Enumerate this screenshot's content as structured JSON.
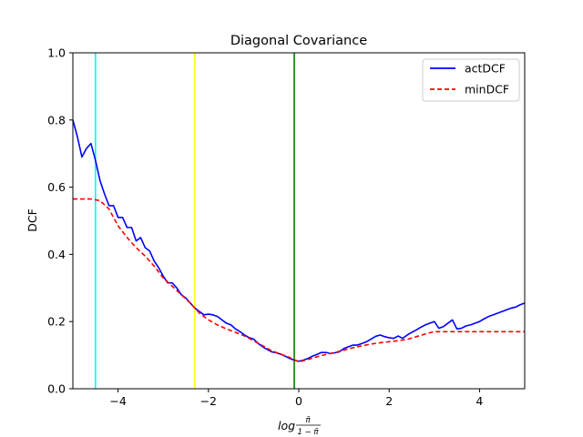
{
  "chart_data": {
    "type": "line",
    "title": "Diagonal Covariance",
    "xlabel_parts": {
      "log": "log",
      "numerator": "π̃",
      "denominator": "1 − π̃"
    },
    "ylabel": "DCF",
    "xlim": [
      -5,
      5
    ],
    "ylim": [
      0,
      1
    ],
    "xticks": [
      -4,
      -2,
      0,
      2,
      4
    ],
    "xtick_labels": [
      "−4",
      "−2",
      "0",
      "2",
      "4"
    ],
    "yticks": [
      0.0,
      0.2,
      0.4,
      0.6,
      0.8,
      1.0
    ],
    "ytick_labels": [
      "0.0",
      "0.2",
      "0.4",
      "0.6",
      "0.8",
      "1.0"
    ],
    "grid": false,
    "legend_position": "top-right",
    "vlines": [
      {
        "x": -4.5,
        "color": "#00ffff"
      },
      {
        "x": -2.3,
        "color": "#ffff00"
      },
      {
        "x": -0.1,
        "color": "#008000"
      }
    ],
    "series": [
      {
        "name": "actDCF",
        "color": "#0000ff",
        "style": "solid",
        "points": [
          [
            -5.0,
            0.8
          ],
          [
            -4.9,
            0.75
          ],
          [
            -4.8,
            0.69
          ],
          [
            -4.7,
            0.715
          ],
          [
            -4.6,
            0.73
          ],
          [
            -4.5,
            0.68
          ],
          [
            -4.4,
            0.62
          ],
          [
            -4.3,
            0.58
          ],
          [
            -4.2,
            0.545
          ],
          [
            -4.1,
            0.545
          ],
          [
            -4.0,
            0.51
          ],
          [
            -3.9,
            0.51
          ],
          [
            -3.8,
            0.48
          ],
          [
            -3.7,
            0.48
          ],
          [
            -3.6,
            0.44
          ],
          [
            -3.5,
            0.45
          ],
          [
            -3.4,
            0.42
          ],
          [
            -3.3,
            0.41
          ],
          [
            -3.2,
            0.38
          ],
          [
            -3.1,
            0.36
          ],
          [
            -3.0,
            0.335
          ],
          [
            -2.9,
            0.315
          ],
          [
            -2.8,
            0.315
          ],
          [
            -2.7,
            0.3
          ],
          [
            -2.6,
            0.28
          ],
          [
            -2.5,
            0.27
          ],
          [
            -2.4,
            0.255
          ],
          [
            -2.3,
            0.24
          ],
          [
            -2.2,
            0.23
          ],
          [
            -2.1,
            0.22
          ],
          [
            -2.0,
            0.222
          ],
          [
            -1.9,
            0.22
          ],
          [
            -1.8,
            0.215
          ],
          [
            -1.7,
            0.205
          ],
          [
            -1.6,
            0.195
          ],
          [
            -1.5,
            0.19
          ],
          [
            -1.4,
            0.178
          ],
          [
            -1.3,
            0.17
          ],
          [
            -1.2,
            0.16
          ],
          [
            -1.1,
            0.152
          ],
          [
            -1.0,
            0.148
          ],
          [
            -0.9,
            0.135
          ],
          [
            -0.8,
            0.125
          ],
          [
            -0.7,
            0.117
          ],
          [
            -0.6,
            0.11
          ],
          [
            -0.5,
            0.107
          ],
          [
            -0.4,
            0.103
          ],
          [
            -0.3,
            0.097
          ],
          [
            -0.2,
            0.09
          ],
          [
            -0.1,
            0.085
          ],
          [
            0.0,
            0.082
          ],
          [
            0.1,
            0.085
          ],
          [
            0.2,
            0.09
          ],
          [
            0.3,
            0.097
          ],
          [
            0.4,
            0.102
          ],
          [
            0.5,
            0.108
          ],
          [
            0.6,
            0.108
          ],
          [
            0.7,
            0.105
          ],
          [
            0.8,
            0.107
          ],
          [
            0.9,
            0.11
          ],
          [
            1.0,
            0.12
          ],
          [
            1.1,
            0.125
          ],
          [
            1.2,
            0.13
          ],
          [
            1.3,
            0.13
          ],
          [
            1.4,
            0.135
          ],
          [
            1.5,
            0.14
          ],
          [
            1.6,
            0.148
          ],
          [
            1.7,
            0.156
          ],
          [
            1.8,
            0.16
          ],
          [
            1.9,
            0.155
          ],
          [
            2.0,
            0.152
          ],
          [
            2.1,
            0.15
          ],
          [
            2.2,
            0.157
          ],
          [
            2.3,
            0.15
          ],
          [
            2.4,
            0.16
          ],
          [
            2.5,
            0.168
          ],
          [
            2.6,
            0.175
          ],
          [
            2.7,
            0.183
          ],
          [
            2.8,
            0.19
          ],
          [
            2.9,
            0.195
          ],
          [
            3.0,
            0.2
          ],
          [
            3.1,
            0.18
          ],
          [
            3.2,
            0.185
          ],
          [
            3.3,
            0.195
          ],
          [
            3.4,
            0.205
          ],
          [
            3.5,
            0.178
          ],
          [
            3.6,
            0.18
          ],
          [
            3.7,
            0.187
          ],
          [
            3.8,
            0.19
          ],
          [
            3.9,
            0.195
          ],
          [
            4.0,
            0.2
          ],
          [
            4.1,
            0.208
          ],
          [
            4.2,
            0.215
          ],
          [
            4.3,
            0.22
          ],
          [
            4.4,
            0.225
          ],
          [
            4.5,
            0.23
          ],
          [
            4.6,
            0.235
          ],
          [
            4.7,
            0.24
          ],
          [
            4.8,
            0.243
          ],
          [
            4.9,
            0.25
          ],
          [
            5.0,
            0.255
          ]
        ]
      },
      {
        "name": "minDCF",
        "color": "#ff0000",
        "style": "dashed",
        "points": [
          [
            -5.0,
            0.565
          ],
          [
            -4.8,
            0.565
          ],
          [
            -4.6,
            0.565
          ],
          [
            -4.4,
            0.56
          ],
          [
            -4.2,
            0.535
          ],
          [
            -4.0,
            0.485
          ],
          [
            -3.8,
            0.45
          ],
          [
            -3.6,
            0.42
          ],
          [
            -3.4,
            0.395
          ],
          [
            -3.2,
            0.365
          ],
          [
            -3.0,
            0.33
          ],
          [
            -2.8,
            0.305
          ],
          [
            -2.6,
            0.28
          ],
          [
            -2.4,
            0.255
          ],
          [
            -2.2,
            0.225
          ],
          [
            -2.0,
            0.205
          ],
          [
            -1.8,
            0.19
          ],
          [
            -1.6,
            0.178
          ],
          [
            -1.4,
            0.168
          ],
          [
            -1.2,
            0.157
          ],
          [
            -1.0,
            0.143
          ],
          [
            -0.8,
            0.128
          ],
          [
            -0.6,
            0.113
          ],
          [
            -0.4,
            0.103
          ],
          [
            -0.2,
            0.093
          ],
          [
            0.0,
            0.08
          ],
          [
            0.2,
            0.087
          ],
          [
            0.4,
            0.095
          ],
          [
            0.6,
            0.102
          ],
          [
            0.8,
            0.108
          ],
          [
            1.0,
            0.115
          ],
          [
            1.2,
            0.122
          ],
          [
            1.4,
            0.128
          ],
          [
            1.6,
            0.133
          ],
          [
            1.8,
            0.137
          ],
          [
            2.0,
            0.14
          ],
          [
            2.2,
            0.143
          ],
          [
            2.4,
            0.147
          ],
          [
            2.6,
            0.155
          ],
          [
            2.8,
            0.163
          ],
          [
            3.0,
            0.17
          ],
          [
            3.2,
            0.17
          ],
          [
            3.5,
            0.17
          ],
          [
            4.0,
            0.17
          ],
          [
            4.5,
            0.17
          ],
          [
            5.0,
            0.17
          ]
        ]
      }
    ]
  }
}
